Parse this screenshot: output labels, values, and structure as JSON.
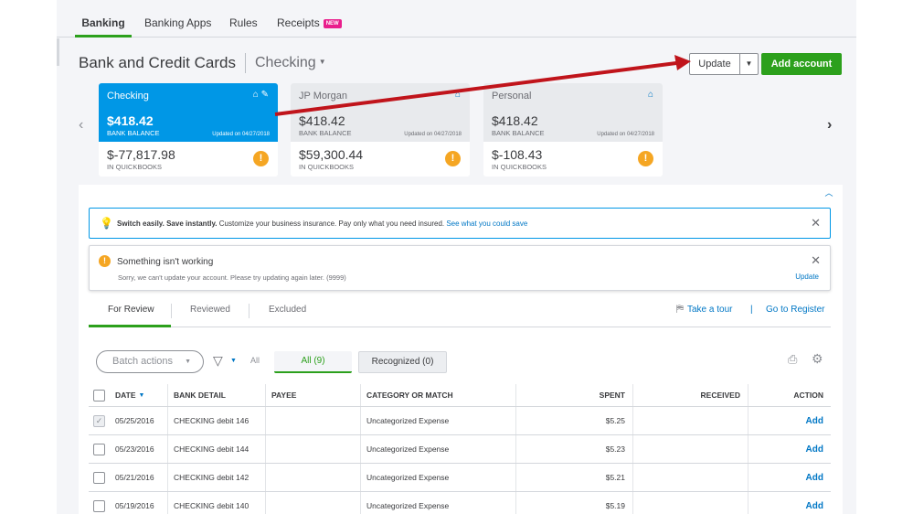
{
  "top_tabs": [
    {
      "label": "Banking",
      "active": true
    },
    {
      "label": "Banking Apps",
      "active": false
    },
    {
      "label": "Rules",
      "active": false
    },
    {
      "label": "Receipts",
      "active": false,
      "badge": "NEW"
    }
  ],
  "header": {
    "title": "Bank and Credit Cards",
    "account_selector": "Checking",
    "update_button": "Update",
    "add_account_button": "Add account"
  },
  "accounts": [
    {
      "name": "Checking",
      "bank_balance": "$418.42",
      "bank_balance_label": "BANK BALANCE",
      "updated": "Updated on 04/27/2018",
      "qb_balance": "$-77,817.98",
      "qb_label": "IN QUICKBOOKS",
      "active": true
    },
    {
      "name": "JP Morgan",
      "bank_balance": "$418.42",
      "bank_balance_label": "BANK BALANCE",
      "updated": "Updated on 04/27/2018",
      "qb_balance": "$59,300.44",
      "qb_label": "IN QUICKBOOKS",
      "active": false
    },
    {
      "name": "Personal",
      "bank_balance": "$418.42",
      "bank_balance_label": "BANK BALANCE",
      "updated": "Updated on 04/27/2018",
      "qb_balance": "$-108.43",
      "qb_label": "IN QUICKBOOKS",
      "active": false
    }
  ],
  "info_banner": {
    "bold": "Switch easily. Save instantly.",
    "text": " Customize your business insurance. Pay only what you need insured. ",
    "link": "See what you could save"
  },
  "error_banner": {
    "title": "Something isn't working",
    "message": "Sorry, we can't update your account. Please try updating again later. (9999)",
    "link": "Update"
  },
  "sub_tabs": [
    {
      "label": "For Review",
      "active": true
    },
    {
      "label": "Reviewed",
      "active": false
    },
    {
      "label": "Excluded",
      "active": false
    }
  ],
  "take_tour": "Take a tour",
  "separator": "|",
  "go_to_register": "Go to Register",
  "filters": {
    "batch_actions": "Batch actions",
    "all_label": "All",
    "all_pill": "All (9)",
    "recognized_pill": "Recognized (0)"
  },
  "table": {
    "columns": [
      "DATE",
      "BANK DETAIL",
      "PAYEE",
      "CATEGORY OR MATCH",
      "SPENT",
      "RECEIVED",
      "ACTION"
    ],
    "rows": [
      {
        "checked": true,
        "date": "05/25/2016",
        "bank_detail": "CHECKING debit 146",
        "payee": "",
        "category": "Uncategorized Expense",
        "spent": "$5.25",
        "received": "",
        "action": "Add"
      },
      {
        "checked": false,
        "date": "05/23/2016",
        "bank_detail": "CHECKING debit 144",
        "payee": "",
        "category": "Uncategorized Expense",
        "spent": "$5.23",
        "received": "",
        "action": "Add"
      },
      {
        "checked": false,
        "date": "05/21/2016",
        "bank_detail": "CHECKING debit 142",
        "payee": "",
        "category": "Uncategorized Expense",
        "spent": "$5.21",
        "received": "",
        "action": "Add"
      },
      {
        "checked": false,
        "date": "05/19/2016",
        "bank_detail": "CHECKING debit 140",
        "payee": "",
        "category": "Uncategorized Expense",
        "spent": "$5.19",
        "received": "",
        "action": "Add"
      }
    ]
  },
  "colors": {
    "accent_green": "#2ca01c",
    "active_card_blue": "#0097e6",
    "link_blue": "#0077c5",
    "warning_orange": "#f5a623",
    "annotation_arrow": "#c0141b"
  }
}
